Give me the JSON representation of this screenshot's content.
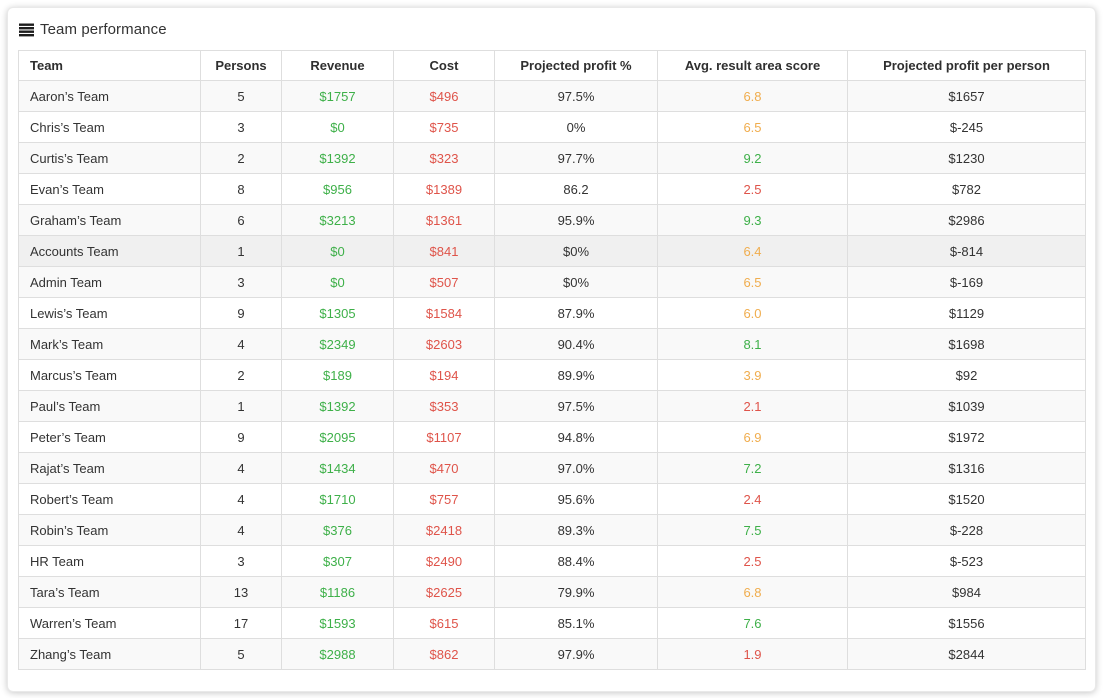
{
  "header": {
    "title": "Team performance"
  },
  "colors": {
    "green": "#3eb049",
    "red": "#df544a",
    "orange": "#f0ad4e",
    "stripe": "#f9f9f9",
    "highlight": "#f0f0f0"
  },
  "table": {
    "columns": [
      "Team",
      "Persons",
      "Revenue",
      "Cost",
      "Projected profit %",
      "Avg. result area score",
      "Projected profit per person"
    ],
    "rows": [
      {
        "team": "Aaron’s Team",
        "persons": "5",
        "revenue": "$1757",
        "cost": "$496",
        "profit_pct": "97.5%",
        "score": "6.8",
        "profit_per_person": "$1657",
        "highlighted": false
      },
      {
        "team": "Chris’s Team",
        "persons": "3",
        "revenue": "$0",
        "cost": "$735",
        "profit_pct": "0%",
        "score": "6.5",
        "profit_per_person": "$-245",
        "highlighted": false
      },
      {
        "team": "Curtis’s Team",
        "persons": "2",
        "revenue": "$1392",
        "cost": "$323",
        "profit_pct": "97.7%",
        "score": "9.2",
        "profit_per_person": "$1230",
        "highlighted": false
      },
      {
        "team": "Evan’s Team",
        "persons": "8",
        "revenue": "$956",
        "cost": "$1389",
        "profit_pct": "86.2",
        "score": "2.5",
        "profit_per_person": "$782",
        "highlighted": false
      },
      {
        "team": "Graham’s Team",
        "persons": "6",
        "revenue": "$3213",
        "cost": "$1361",
        "profit_pct": "95.9%",
        "score": "9.3",
        "profit_per_person": "$2986",
        "highlighted": false
      },
      {
        "team": "Accounts Team",
        "persons": "1",
        "revenue": "$0",
        "cost": "$841",
        "profit_pct": "$0%",
        "score": "6.4",
        "profit_per_person": "$-814",
        "highlighted": true
      },
      {
        "team": "Admin Team",
        "persons": "3",
        "revenue": "$0",
        "cost": "$507",
        "profit_pct": "$0%",
        "score": "6.5",
        "profit_per_person": "$-169",
        "highlighted": false
      },
      {
        "team": "Lewis’s Team",
        "persons": "9",
        "revenue": "$1305",
        "cost": "$1584",
        "profit_pct": "87.9%",
        "score": "6.0",
        "profit_per_person": "$1129",
        "highlighted": false
      },
      {
        "team": "Mark’s Team",
        "persons": "4",
        "revenue": "$2349",
        "cost": "$2603",
        "profit_pct": "90.4%",
        "score": "8.1",
        "profit_per_person": "$1698",
        "highlighted": false
      },
      {
        "team": "Marcus’s Team",
        "persons": "2",
        "revenue": "$189",
        "cost": "$194",
        "profit_pct": "89.9%",
        "score": "3.9",
        "profit_per_person": "$92",
        "highlighted": false
      },
      {
        "team": "Paul’s Team",
        "persons": "1",
        "revenue": "$1392",
        "cost": "$353",
        "profit_pct": "97.5%",
        "score": "2.1",
        "profit_per_person": "$1039",
        "highlighted": false
      },
      {
        "team": "Peter’s Team",
        "persons": "9",
        "revenue": "$2095",
        "cost": "$1107",
        "profit_pct": "94.8%",
        "score": "6.9",
        "profit_per_person": "$1972",
        "highlighted": false
      },
      {
        "team": "Rajat’s Team",
        "persons": "4",
        "revenue": "$1434",
        "cost": "$470",
        "profit_pct": "97.0%",
        "score": "7.2",
        "profit_per_person": "$1316",
        "highlighted": false
      },
      {
        "team": "Robert’s Team",
        "persons": "4",
        "revenue": "$1710",
        "cost": "$757",
        "profit_pct": "95.6%",
        "score": "2.4",
        "profit_per_person": "$1520",
        "highlighted": false
      },
      {
        "team": "Robin’s Team",
        "persons": "4",
        "revenue": "$376",
        "cost": "$2418",
        "profit_pct": "89.3%",
        "score": "7.5",
        "profit_per_person": "$-228",
        "highlighted": false
      },
      {
        "team": "HR Team",
        "persons": "3",
        "revenue": "$307",
        "cost": "$2490",
        "profit_pct": "88.4%",
        "score": "2.5",
        "profit_per_person": "$-523",
        "highlighted": false
      },
      {
        "team": "Tara’s Team",
        "persons": "13",
        "revenue": "$1186",
        "cost": "$2625",
        "profit_pct": "79.9%",
        "score": "6.8",
        "profit_per_person": "$984",
        "highlighted": false
      },
      {
        "team": "Warren’s Team",
        "persons": "17",
        "revenue": "$1593",
        "cost": "$615",
        "profit_pct": "85.1%",
        "score": "7.6",
        "profit_per_person": "$1556",
        "highlighted": false
      },
      {
        "team": "Zhang’s Team",
        "persons": "5",
        "revenue": "$2988",
        "cost": "$862",
        "profit_pct": "97.9%",
        "score": "1.9",
        "profit_per_person": "$2844",
        "highlighted": false
      }
    ]
  }
}
